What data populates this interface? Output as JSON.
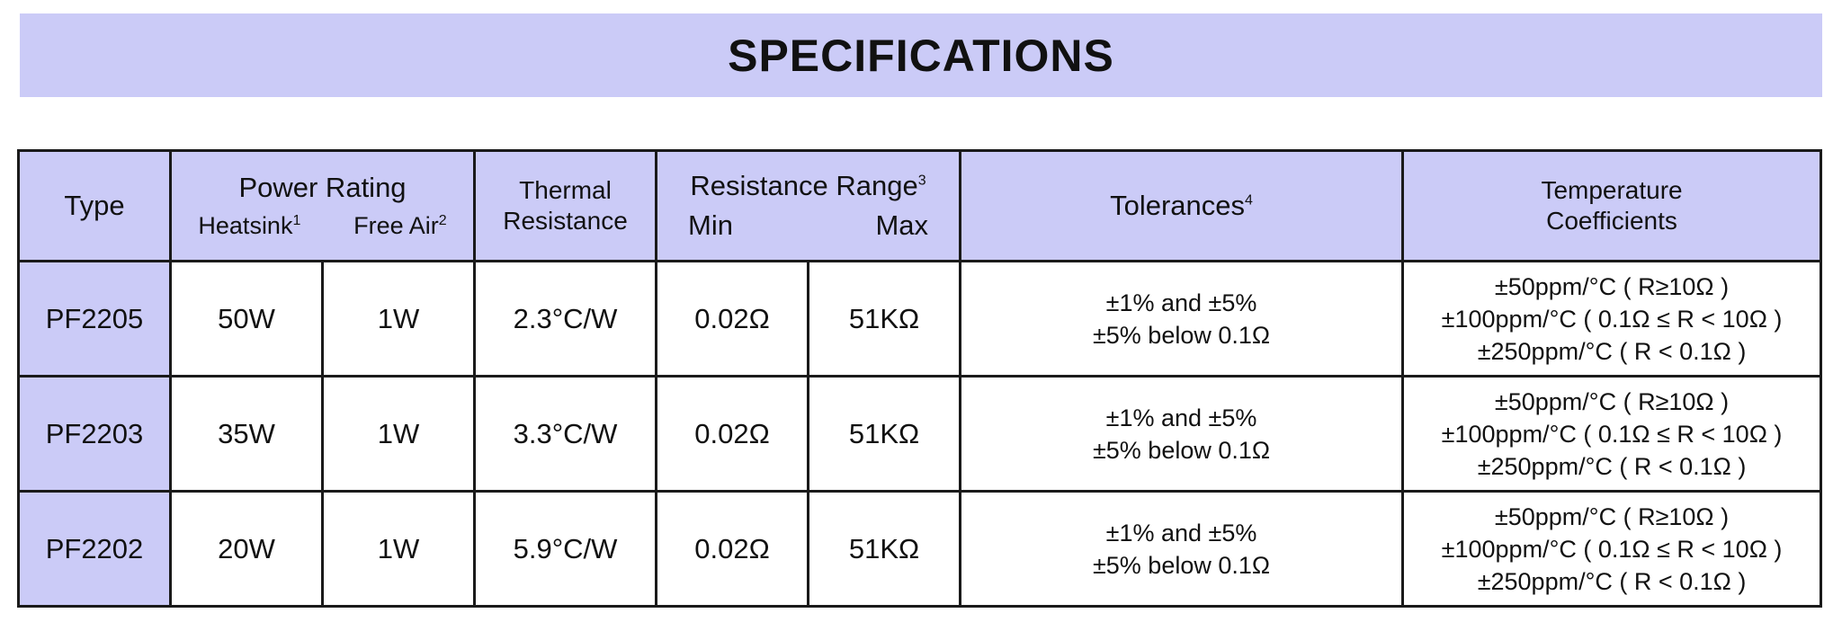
{
  "title": "SPECIFICATIONS",
  "headers": {
    "type": "Type",
    "power_rating": "Power Rating",
    "heatsink": "Heatsink",
    "heatsink_note": "1",
    "free_air": "Free Air",
    "free_air_note": "2",
    "thermal_resistance_line1": "Thermal",
    "thermal_resistance_line2": "Resistance",
    "resistance_range": "Resistance Range",
    "resistance_range_note": "3",
    "min": "Min",
    "max": "Max",
    "tolerances": "Tolerances",
    "tolerances_note": "4",
    "temp_coeff_line1": "Temperature",
    "temp_coeff_line2": "Coefficients"
  },
  "rows": [
    {
      "type": "PF2205",
      "heatsink": "50W",
      "free_air": "1W",
      "thermal": "2.3°C/W",
      "min": "0.02Ω",
      "max": "51KΩ",
      "tol1": "±1% and ±5%",
      "tol2": "±5% below 0.1Ω",
      "tc1": "±50ppm/°C ( R≥10Ω )",
      "tc2": "±100ppm/°C ( 0.1Ω ≤ R < 10Ω )",
      "tc3": "±250ppm/°C ( R < 0.1Ω )"
    },
    {
      "type": "PF2203",
      "heatsink": "35W",
      "free_air": "1W",
      "thermal": "3.3°C/W",
      "min": "0.02Ω",
      "max": "51KΩ",
      "tol1": "±1% and ±5%",
      "tol2": "±5% below 0.1Ω",
      "tc1": "±50ppm/°C ( R≥10Ω )",
      "tc2": "±100ppm/°C ( 0.1Ω ≤ R < 10Ω )",
      "tc3": "±250ppm/°C ( R < 0.1Ω )"
    },
    {
      "type": "PF2202",
      "heatsink": "20W",
      "free_air": "1W",
      "thermal": "5.9°C/W",
      "min": "0.02Ω",
      "max": "51KΩ",
      "tol1": "±1% and ±5%",
      "tol2": "±5% below 0.1Ω",
      "tc1": "±50ppm/°C ( R≥10Ω )",
      "tc2": "±100ppm/°C ( 0.1Ω ≤ R < 10Ω )",
      "tc3": "±250ppm/°C ( R < 0.1Ω )"
    }
  ],
  "colors": {
    "header_bg": "#cbcbf7",
    "border": "#1a1a1a",
    "text": "#111111"
  }
}
